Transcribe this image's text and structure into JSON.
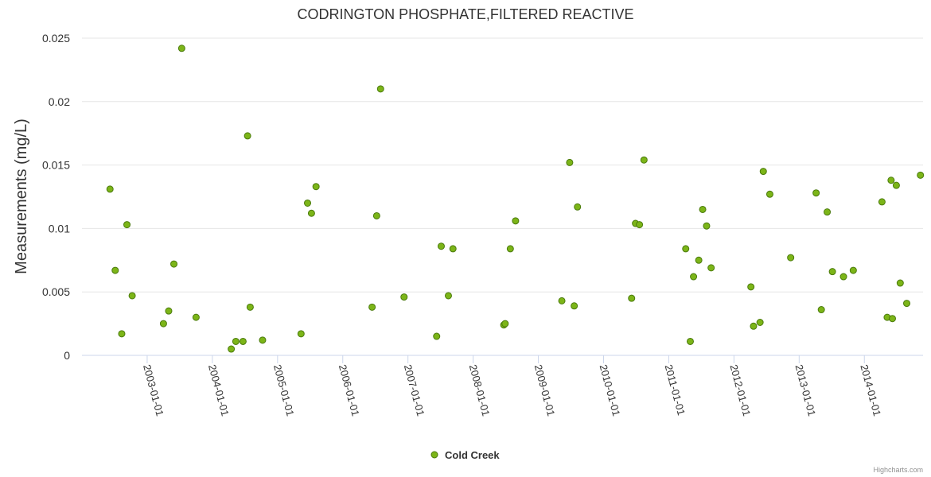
{
  "chart_data": {
    "type": "scatter",
    "title": "CODRINGTON PHOSPHATE,FILTERED REACTIVE",
    "xlabel": "",
    "ylabel": "Measurements (mg/L)",
    "ylim": [
      0,
      0.025
    ],
    "yticks": [
      0,
      0.005,
      0.01,
      0.015,
      0.02,
      0.025
    ],
    "ytick_labels": [
      "0",
      "0.005",
      "0.01",
      "0.015",
      "0.02",
      "0.025"
    ],
    "xlim": [
      2002.0,
      2014.9
    ],
    "xticks": [
      2003,
      2004,
      2005,
      2006,
      2007,
      2008,
      2009,
      2010,
      2011,
      2012,
      2013,
      2014
    ],
    "xtick_labels": [
      "2003-01-01",
      "2004-01-01",
      "2005-01-01",
      "2006-01-01",
      "2007-01-01",
      "2008-01-01",
      "2009-01-01",
      "2010-01-01",
      "2011-01-01",
      "2012-01-01",
      "2013-01-01",
      "2014-01-01"
    ],
    "grid": "horizontal",
    "legend_position": "bottom-center",
    "series": [
      {
        "name": "Cold Creek",
        "color": "#7cb518",
        "edge_color": "#4a7a0c",
        "x": [
          2002.43,
          2002.51,
          2002.61,
          2002.69,
          2002.77,
          2003.25,
          2003.33,
          2003.41,
          2003.53,
          2003.75,
          2004.29,
          2004.36,
          2004.47,
          2004.54,
          2004.58,
          2004.77,
          2005.36,
          2005.46,
          2005.52,
          2005.59,
          2006.45,
          2006.52,
          2006.58,
          2006.94,
          2007.44,
          2007.51,
          2007.62,
          2007.69,
          2008.47,
          2008.49,
          2008.57,
          2008.65,
          2009.36,
          2009.48,
          2009.55,
          2009.6,
          2010.43,
          2010.49,
          2010.55,
          2010.62,
          2011.26,
          2011.33,
          2011.38,
          2011.46,
          2011.52,
          2011.58,
          2011.65,
          2012.26,
          2012.3,
          2012.4,
          2012.45,
          2012.55,
          2012.87,
          2013.26,
          2013.34,
          2013.43,
          2013.51,
          2013.68,
          2013.83,
          2014.27,
          2014.35,
          2014.41,
          2014.43,
          2014.49,
          2014.55,
          2014.65,
          2014.86
        ],
        "values": [
          0.0131,
          0.0067,
          0.0017,
          0.0103,
          0.0047,
          0.0025,
          0.0035,
          0.0072,
          0.0242,
          0.003,
          0.0005,
          0.0011,
          0.0011,
          0.0173,
          0.0038,
          0.0012,
          0.0017,
          0.012,
          0.0112,
          0.0133,
          0.0038,
          0.011,
          0.021,
          0.0046,
          0.0015,
          0.0086,
          0.0047,
          0.0084,
          0.0024,
          0.0025,
          0.0084,
          0.0106,
          0.0043,
          0.0152,
          0.0039,
          0.0117,
          0.0045,
          0.0104,
          0.0103,
          0.0154,
          0.0084,
          0.0011,
          0.0062,
          0.0075,
          0.0115,
          0.0102,
          0.0069,
          0.0054,
          0.0023,
          0.0026,
          0.0145,
          0.0127,
          0.0077,
          0.0128,
          0.0036,
          0.0113,
          0.0066,
          0.0062,
          0.0067,
          0.0121,
          0.003,
          0.0138,
          0.0029,
          0.0134,
          0.0057,
          0.0041,
          0.0142
        ]
      }
    ]
  },
  "credits": "Highcharts.com"
}
